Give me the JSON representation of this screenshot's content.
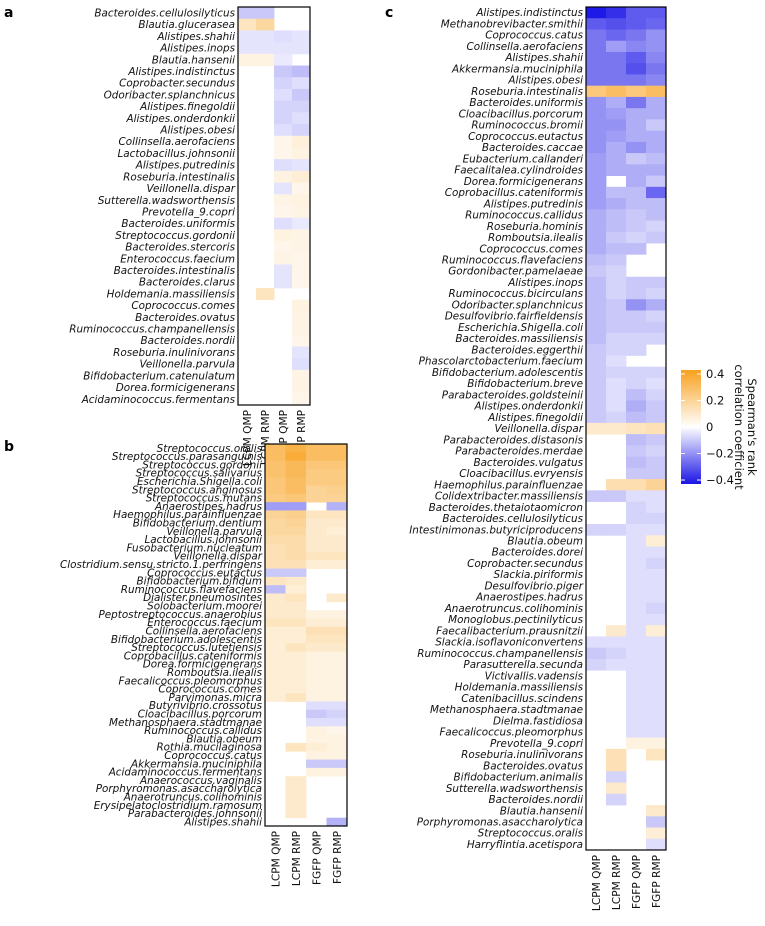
{
  "chart_data": [
    {
      "type": "heatmap",
      "panel": "a",
      "columns": [
        "LCPM QMP",
        "LCPM RMP",
        "FGFP QMP",
        "FGFP RMP"
      ],
      "rows": [
        "Bacteroides.cellulosilyticus",
        "Blautia.glucerasea",
        "Alistipes.shahii",
        "Alistipes.inops",
        "Blautia.hansenii",
        "Alistipes.indistinctus",
        "Coprobacter.secundus",
        "Odoribacter.splanchnicus",
        "Alistipes.finegoldii",
        "Alistipes.onderdonkii",
        "Alistipes.obesi",
        "Collinsella.aerofaciens",
        "Lactobacillus.johnsonii",
        "Alistipes.putredinis",
        "Roseburia.intestinalis",
        "Veillonella.dispar",
        "Sutterella.wadsworthensis",
        "Prevotella_9.copri",
        "Bacteroides.uniformis",
        "Streptococcus.gordonii",
        "Bacteroides.stercoris",
        "Enterococcus.faecium",
        "Bacteroides.intestinalis",
        "Bacteroides.clarus",
        "Holdemania.massiliensis",
        "Coprococcus.comes",
        "Bacteroides.ovatus",
        "Ruminococcus.champanellensis",
        "Bacteroides.nordii",
        "Roseburia.inulinivorans",
        "Veillonella.parvula",
        "Bifidobacterium.catenulatum",
        "Dorea.formicigenerans",
        "Acidaminococcus.fermentans"
      ],
      "values": [
        [
          -0.1,
          -0.1,
          null,
          null
        ],
        [
          0.12,
          0.18,
          null,
          null
        ],
        [
          -0.05,
          -0.05,
          -0.06,
          -0.05
        ],
        [
          -0.05,
          -0.05,
          -0.05,
          -0.05
        ],
        [
          0.06,
          0.06,
          -0.04,
          null
        ],
        [
          null,
          null,
          -0.1,
          -0.12
        ],
        [
          null,
          null,
          -0.08,
          -0.06
        ],
        [
          null,
          null,
          -0.06,
          -0.1
        ],
        [
          null,
          null,
          -0.08,
          -0.08
        ],
        [
          null,
          null,
          -0.08,
          -0.06
        ],
        [
          null,
          null,
          -0.06,
          -0.08
        ],
        [
          null,
          null,
          0.04,
          0.07
        ],
        [
          null,
          null,
          0.04,
          0.06
        ],
        [
          null,
          null,
          -0.06,
          -0.05
        ],
        [
          null,
          null,
          0.06,
          0.08
        ],
        [
          null,
          null,
          -0.05,
          0.04
        ],
        [
          null,
          null,
          0.05,
          0.06
        ],
        [
          null,
          null,
          0.04,
          0.05
        ],
        [
          null,
          null,
          -0.06,
          -0.04
        ],
        [
          null,
          null,
          0.06,
          0.05
        ],
        [
          null,
          null,
          0.04,
          0.05
        ],
        [
          null,
          null,
          0.05,
          0.04
        ],
        [
          null,
          null,
          -0.05,
          0.04
        ],
        [
          null,
          null,
          -0.05,
          0.04
        ],
        [
          null,
          0.12,
          null,
          null
        ],
        [
          null,
          null,
          null,
          0.06
        ],
        [
          null,
          null,
          null,
          0.05
        ],
        [
          null,
          null,
          null,
          0.05
        ],
        [
          null,
          null,
          null,
          0.04
        ],
        [
          null,
          null,
          null,
          -0.05
        ],
        [
          null,
          null,
          null,
          -0.06
        ],
        [
          null,
          null,
          null,
          0.05
        ],
        [
          null,
          null,
          null,
          0.05
        ],
        [
          null,
          null,
          null,
          0.04
        ]
      ]
    },
    {
      "type": "heatmap",
      "panel": "b",
      "columns": [
        "LCPM QMP",
        "LCPM RMP",
        "FGFP QMP",
        "FGFP RMP"
      ],
      "rows": [
        "Streptococcus.oralis",
        "Streptococcus.parasanguinis",
        "Streptococcus.gordonii",
        "Streptococcus.salivarius",
        "Escherichia.Shigella.coli",
        "Streptococcus.anginosus",
        "Streptococcus.mutans",
        "Anaerostipes.hadrus",
        "Haemophilus.parainfluenzae",
        "Bifidobacterium.dentium",
        "Veillonella.parvula",
        "Lactobacillus.johnsonii",
        "Fusobacterium.nucleatum",
        "Veillonella.dispar",
        "Clostridium.sensu.stricto.1.perfringens",
        "Coprococcus.eutactus",
        "Bifidobacterium.bifidum",
        "Ruminococcus.flavefaciens",
        "Dialister.pneumosintes",
        "Solobacterium.moorei",
        "Peptostreptococcus.anaerobius",
        "Enterococcus.faecium",
        "Collinsella.aerofaciens",
        "Bifidobacterium.adolescentis",
        "Streptococcus.lutetiensis",
        "Coprobacillus.cateniformis",
        "Dorea.formicigenerans",
        "Romboutsia.ilealis",
        "Faecalicoccus.pleomorphus",
        "Coprococcus.comes",
        "Parvimonas.micra",
        "Butyrivibrio.crossotus",
        "Cloacibacillus.porcorum",
        "Methanosphaera.stadtmanae",
        "Ruminococcus.callidus",
        "Blautia.obeum",
        "Rothia.mucilaginosa",
        "Coprococcus.catus",
        "Akkermansia.muciniphila",
        "Acidaminococcus.fermentans",
        "Anaerococcus.vaginalis",
        "Porphyromonas.asaccharolytica",
        "Anaerotruncus.colihominis",
        "Erysipelatoclostridium.ramosum",
        "Parabacteroides.johnsonii",
        "Alistipes.shahii"
      ],
      "values": [
        [
          0.3,
          0.35,
          0.3,
          0.3
        ],
        [
          0.3,
          0.38,
          0.3,
          0.3
        ],
        [
          0.28,
          0.32,
          0.26,
          0.26
        ],
        [
          0.28,
          0.32,
          0.24,
          0.24
        ],
        [
          0.26,
          0.3,
          0.24,
          0.24
        ],
        [
          0.26,
          0.3,
          0.2,
          0.22
        ],
        [
          0.24,
          0.26,
          0.2,
          0.2
        ],
        [
          -0.18,
          -0.18,
          null,
          -0.14
        ],
        [
          0.2,
          0.22,
          0.12,
          0.12
        ],
        [
          0.18,
          0.2,
          0.1,
          0.1
        ],
        [
          0.18,
          0.18,
          0.1,
          0.08
        ],
        [
          0.16,
          0.16,
          0.1,
          0.1
        ],
        [
          0.14,
          0.16,
          0.1,
          0.1
        ],
        [
          0.14,
          0.16,
          0.12,
          0.12
        ],
        [
          0.14,
          0.14,
          0.08,
          0.08
        ],
        [
          -0.1,
          -0.1,
          null,
          null
        ],
        [
          0.12,
          0.1,
          null,
          null
        ],
        [
          -0.12,
          0.08,
          null,
          null
        ],
        [
          0.1,
          0.12,
          null,
          0.1
        ],
        [
          0.1,
          0.1,
          null,
          null
        ],
        [
          0.1,
          0.1,
          0.06,
          0.06
        ],
        [
          0.12,
          0.12,
          0.08,
          0.08
        ],
        [
          0.08,
          0.08,
          0.14,
          0.14
        ],
        [
          0.08,
          0.08,
          0.12,
          0.12
        ],
        [
          0.08,
          0.12,
          0.1,
          0.1
        ],
        [
          0.08,
          0.08,
          0.06,
          0.06
        ],
        [
          0.08,
          0.08,
          0.06,
          0.06
        ],
        [
          0.08,
          0.08,
          0.06,
          0.06
        ],
        [
          0.08,
          0.08,
          0.06,
          0.06
        ],
        [
          0.08,
          0.08,
          0.06,
          0.06
        ],
        [
          0.08,
          0.12,
          0.06,
          0.06
        ],
        [
          null,
          null,
          -0.06,
          -0.06
        ],
        [
          null,
          null,
          -0.1,
          -0.08
        ],
        [
          null,
          null,
          -0.06,
          -0.06
        ],
        [
          null,
          null,
          0.06,
          0.04
        ],
        [
          null,
          null,
          0.06,
          0.06
        ],
        [
          null,
          0.12,
          0.08,
          0.06
        ],
        [
          null,
          null,
          0.06,
          0.06
        ],
        [
          null,
          null,
          -0.1,
          -0.1
        ],
        [
          null,
          null,
          0.06,
          0.06
        ],
        [
          null,
          0.1,
          null,
          null
        ],
        [
          null,
          0.1,
          null,
          null
        ],
        [
          null,
          0.1,
          null,
          null
        ],
        [
          null,
          0.1,
          null,
          null
        ],
        [
          null,
          0.1,
          null,
          null
        ],
        [
          null,
          null,
          null,
          -0.14
        ]
      ]
    },
    {
      "type": "heatmap",
      "panel": "c",
      "columns": [
        "LCPM QMP",
        "LCPM RMP",
        "FGFP QMP",
        "FGFP RMP"
      ],
      "rows": [
        "Alistipes.indistinctus",
        "Methanobrevibacter.smithii",
        "Coprococcus.catus",
        "Collinsella.aerofaciens",
        "Alistipes.shahii",
        "Akkermansia.muciniphila",
        "Alistipes.obesi",
        "Roseburia.intestinalis",
        "Bacteroides.uniformis",
        "Cloacibacillus.porcorum",
        "Ruminococcus.bromii",
        "Coprococcus.eutactus",
        "Bacteroides.caccae",
        "Eubacterium.callanderi",
        "Faecalitalea.cylindroides",
        "Dorea.formicigenerans",
        "Coprobacillus.cateniformis",
        "Alistipes.putredinis",
        "Ruminococcus.callidus",
        "Roseburia.hominis",
        "Romboutsia.ilealis",
        "Coprococcus.comes",
        "Ruminococcus.flavefaciens",
        "Gordonibacter.pamelaeae",
        "Alistipes.inops",
        "Ruminococcus.bicirculans",
        "Odoribacter.splanchnicus",
        "Desulfovibrio.fairfieldensis",
        "Escherichia.Shigella.coli",
        "Bacteroides.massiliensis",
        "Bacteroides.eggerthii",
        "Phascolarctobacterium.faecium",
        "Bifidobacterium.adolescentis",
        "Bifidobacterium.breve",
        "Parabacteroides.goldsteinii",
        "Alistipes.onderdonkii",
        "Alistipes.finegoldii",
        "Veillonella.dispar",
        "Parabacteroides.distasonis",
        "Parabacteroides.merdae",
        "Bacteroides.vulgatus",
        "Cloacibacillus.evryensis",
        "Haemophilus.parainfluenzae",
        "Colidextribacter.massiliensis",
        "Bacteroides.thetaiotaomicron",
        "Bacteroides.cellulosilyticus",
        "Intestinimonas.butyriciproducens",
        "Blautia.obeum",
        "Bacteroides.dorei",
        "Coprobacter.secundus",
        "Slackia.piriformis",
        "Desulfovibrio.piger",
        "Anaerostipes.hadrus",
        "Anaerotruncus.colihominis",
        "Monoglobus.pectinilyticus",
        "Faecalibacterium.prausnitzii",
        "Slackia.isoflavoniconvertens",
        "Ruminococcus.champanellensis",
        "Parasutterella.secunda",
        "Victivallis.vadensis",
        "Holdemania.massiliensis",
        "Catenibacillus.scindens",
        "Methanosphaera.stadtmanae",
        "Dielma.fastidiosa",
        "Faecalicoccus.pleomorphus",
        "Prevotella_9.copri",
        "Roseburia.inulinivorans",
        "Bacteroides.ovatus",
        "Bifidobacterium.animalis",
        "Sutterella.wadsworthensis",
        "Bacteroides.nordii",
        "Blautia.hansenii",
        "Porphyromonas.asaccharolytica",
        "Streptococcus.oralis",
        "Harryflintia.acetispora"
      ],
      "values": [
        [
          -0.42,
          -0.38,
          -0.3,
          -0.3
        ],
        [
          -0.3,
          -0.32,
          -0.3,
          -0.28
        ],
        [
          -0.25,
          -0.28,
          -0.25,
          -0.2
        ],
        [
          -0.25,
          -0.18,
          -0.22,
          -0.2
        ],
        [
          -0.25,
          -0.25,
          -0.3,
          -0.22
        ],
        [
          -0.25,
          -0.25,
          -0.32,
          -0.25
        ],
        [
          -0.25,
          -0.25,
          -0.25,
          -0.22
        ],
        [
          0.25,
          0.3,
          0.25,
          0.3
        ],
        [
          -0.2,
          -0.15,
          -0.25,
          -0.15
        ],
        [
          -0.2,
          -0.18,
          -0.15,
          -0.15
        ],
        [
          -0.2,
          -0.2,
          -0.15,
          -0.1
        ],
        [
          -0.2,
          -0.18,
          -0.15,
          -0.15
        ],
        [
          -0.2,
          -0.15,
          -0.2,
          -0.15
        ],
        [
          -0.18,
          -0.15,
          -0.1,
          -0.12
        ],
        [
          -0.18,
          -0.15,
          -0.15,
          -0.15
        ],
        [
          -0.18,
          null,
          -0.15,
          -0.1
        ],
        [
          -0.18,
          -0.12,
          -0.12,
          -0.28
        ],
        [
          -0.18,
          -0.15,
          -0.12,
          -0.12
        ],
        [
          -0.15,
          -0.12,
          -0.1,
          -0.12
        ],
        [
          -0.15,
          -0.12,
          -0.1,
          -0.08
        ],
        [
          -0.15,
          -0.1,
          -0.08,
          -0.1
        ],
        [
          -0.15,
          -0.12,
          -0.12,
          null
        ],
        [
          -0.12,
          -0.1,
          null,
          null
        ],
        [
          -0.1,
          -0.08,
          null,
          null
        ],
        [
          -0.12,
          -0.08,
          -0.1,
          -0.1
        ],
        [
          -0.12,
          -0.08,
          -0.1,
          -0.08
        ],
        [
          -0.12,
          -0.1,
          -0.2,
          -0.15
        ],
        [
          -0.12,
          -0.1,
          -0.1,
          -0.08
        ],
        [
          -0.12,
          -0.1,
          -0.1,
          -0.1
        ],
        [
          -0.12,
          -0.08,
          -0.08,
          -0.08
        ],
        [
          -0.1,
          -0.08,
          -0.08,
          null
        ],
        [
          -0.1,
          -0.06,
          null,
          null
        ],
        [
          -0.1,
          -0.08,
          -0.08,
          -0.08
        ],
        [
          -0.1,
          -0.06,
          -0.08,
          -0.06
        ],
        [
          -0.1,
          -0.06,
          -0.12,
          -0.08
        ],
        [
          -0.1,
          -0.06,
          -0.15,
          -0.1
        ],
        [
          -0.1,
          -0.08,
          -0.12,
          -0.1
        ],
        [
          0.1,
          0.1,
          0.12,
          0.14
        ],
        [
          null,
          null,
          -0.12,
          -0.1
        ],
        [
          null,
          null,
          -0.1,
          -0.08
        ],
        [
          null,
          null,
          -0.12,
          -0.1
        ],
        [
          null,
          null,
          -0.1,
          -0.1
        ],
        [
          null,
          0.15,
          0.15,
          0.2
        ],
        [
          -0.1,
          -0.1,
          -0.06,
          -0.06
        ],
        [
          null,
          null,
          -0.08,
          -0.06
        ],
        [
          null,
          null,
          -0.08,
          -0.08
        ],
        [
          -0.08,
          -0.08,
          -0.06,
          -0.06
        ],
        [
          null,
          null,
          -0.06,
          0.08
        ],
        [
          null,
          null,
          -0.06,
          -0.06
        ],
        [
          null,
          null,
          -0.06,
          -0.08
        ],
        [
          null,
          null,
          -0.06,
          -0.06
        ],
        [
          null,
          null,
          -0.06,
          -0.06
        ],
        [
          null,
          null,
          -0.06,
          -0.06
        ],
        [
          null,
          null,
          -0.06,
          -0.08
        ],
        [
          null,
          null,
          -0.06,
          -0.06
        ],
        [
          null,
          0.1,
          -0.06,
          0.08
        ],
        [
          -0.06,
          -0.06,
          -0.06,
          -0.06
        ],
        [
          -0.1,
          -0.08,
          -0.06,
          -0.06
        ],
        [
          -0.08,
          -0.06,
          -0.06,
          -0.06
        ],
        [
          null,
          null,
          -0.06,
          -0.06
        ],
        [
          null,
          null,
          -0.06,
          -0.06
        ],
        [
          null,
          null,
          -0.06,
          -0.06
        ],
        [
          null,
          null,
          -0.06,
          -0.06
        ],
        [
          null,
          null,
          -0.06,
          -0.06
        ],
        [
          null,
          null,
          -0.06,
          -0.06
        ],
        [
          null,
          null,
          0.06,
          0.06
        ],
        [
          null,
          0.14,
          null,
          0.12
        ],
        [
          null,
          0.14,
          null,
          null
        ],
        [
          null,
          -0.08,
          null,
          null
        ],
        [
          null,
          0.1,
          null,
          null
        ],
        [
          null,
          -0.08,
          null,
          null
        ],
        [
          null,
          null,
          null,
          0.1
        ],
        [
          null,
          null,
          null,
          -0.1
        ],
        [
          null,
          null,
          null,
          0.08
        ],
        [
          null,
          null,
          null,
          -0.06
        ]
      ]
    }
  ],
  "legend": {
    "title_line1": "Spearman's rank",
    "title_line2": "correlation coefficient",
    "ticks": [
      0.4,
      0.2,
      0,
      -0.2,
      -0.4
    ],
    "tick_labels": [
      "0.4",
      "0.2",
      "0",
      "−0.2",
      "−0.4"
    ],
    "range": [
      -0.43,
      0.43
    ],
    "color_negative": "#1a14e6",
    "color_zero": "#ffffff",
    "color_positive": "#f8a11e"
  }
}
